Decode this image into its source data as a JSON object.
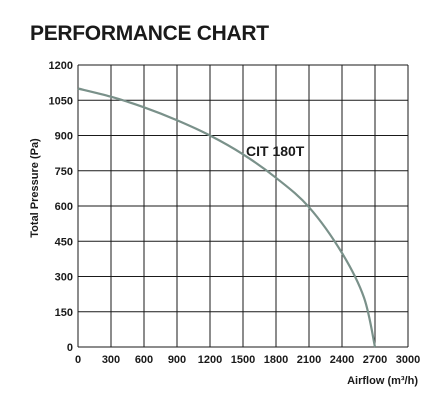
{
  "header": {
    "title": "PERFORMANCE CHART"
  },
  "chart_data": {
    "type": "line",
    "title": "PERFORMANCE CHART",
    "xlabel": "Airflow (m³/h)",
    "ylabel": "Total Pressure (Pa)",
    "xlim": [
      0,
      3000
    ],
    "ylim": [
      0,
      1200
    ],
    "xticks": [
      0,
      300,
      600,
      900,
      1200,
      1500,
      1800,
      2100,
      2400,
      2700,
      3000
    ],
    "yticks": [
      0,
      150,
      300,
      450,
      600,
      750,
      900,
      1050,
      1200
    ],
    "grid": true,
    "series": [
      {
        "name": "CIT 180T",
        "color": "#7a918a",
        "x": [
          0,
          300,
          600,
          900,
          1200,
          1500,
          1800,
          2100,
          2400,
          2600,
          2700
        ],
        "y": [
          1100,
          1065,
          1020,
          965,
          900,
          820,
          720,
          595,
          400,
          210,
          0
        ]
      }
    ]
  }
}
